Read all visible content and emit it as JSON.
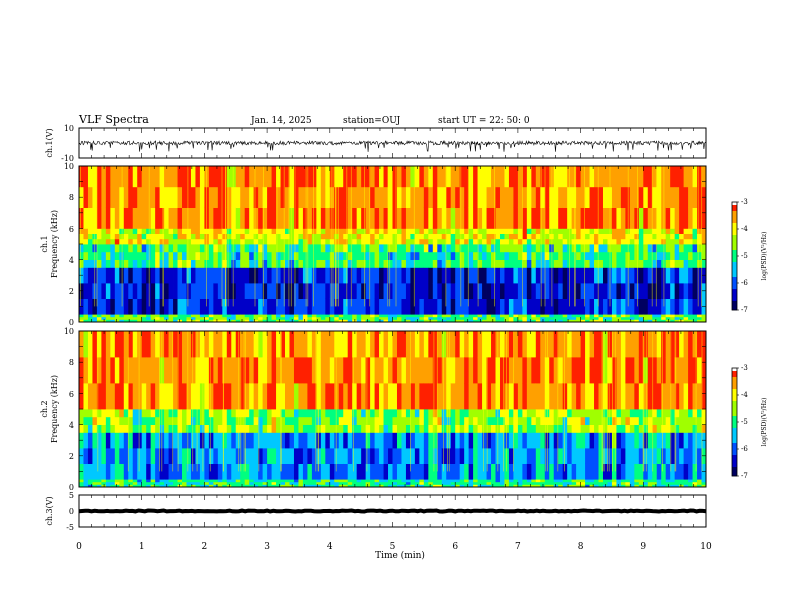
{
  "header": {
    "title": "VLF Spectra",
    "date": "Jan. 14, 2025",
    "station": "station=OUJ",
    "start_ut": "start UT =  22: 50: 0"
  },
  "colors": {
    "scale": [
      "#000060",
      "#0000c8",
      "#0050ff",
      "#00c8ff",
      "#00ff80",
      "#a0ff00",
      "#ffff00",
      "#ffa000",
      "#ff2000",
      "#ffffff"
    ]
  },
  "colorbar": {
    "label": "log(PSD)(V²/Hz)",
    "ticks": [
      "-3",
      "-4",
      "-5",
      "-6",
      "-7"
    ],
    "range": [
      -7,
      -3
    ]
  },
  "chart_data": [
    {
      "type": "line",
      "name": "ch1_waveform",
      "ylabel": "ch.1(V)",
      "ylim": [
        -10,
        10
      ],
      "ytick_labels": [
        "10",
        "-10"
      ],
      "xlim": [
        0,
        10
      ],
      "baseline": 0,
      "amplitude": 2.5,
      "spike_min": -6
    },
    {
      "type": "heatmap",
      "name": "ch1_spectrogram",
      "ylabel_top": "ch.1",
      "ylabel": "Frequency (kHz)",
      "ylim": [
        0,
        10
      ],
      "ytick_labels": [
        "0",
        "2",
        "4",
        "6",
        "8",
        "10"
      ],
      "xlim": [
        0,
        10
      ],
      "bands": [
        {
          "from": 0,
          "to": 0.5,
          "level": 0.55
        },
        {
          "from": 0.5,
          "to": 3.5,
          "level": 0.15
        },
        {
          "from": 3.5,
          "to": 5,
          "level": 0.5
        },
        {
          "from": 5,
          "to": 6,
          "level": 0.72
        },
        {
          "from": 6,
          "to": 10,
          "level": 0.88
        }
      ]
    },
    {
      "type": "heatmap",
      "name": "ch2_spectrogram",
      "ylabel_top": "ch.2",
      "ylabel": "Frequency (kHz)",
      "ylim": [
        0,
        10
      ],
      "ytick_labels": [
        "0",
        "2",
        "4",
        "6",
        "8",
        "10"
      ],
      "xlim": [
        0,
        10
      ],
      "bands": [
        {
          "from": 0,
          "to": 0.5,
          "level": 0.5
        },
        {
          "from": 0.5,
          "to": 3.5,
          "level": 0.32
        },
        {
          "from": 3.5,
          "to": 5,
          "level": 0.62
        },
        {
          "from": 5,
          "to": 10,
          "level": 0.9
        }
      ]
    },
    {
      "type": "line",
      "name": "ch3_waveform",
      "ylabel": "ch.3(V)",
      "ylim": [
        -5,
        5
      ],
      "ytick_labels": [
        "5",
        "0",
        "-5"
      ],
      "xlim": [
        0,
        10
      ],
      "baseline": 0,
      "amplitude": 0.3,
      "xlabel": "Time (min)",
      "xtick_labels": [
        "0",
        "1",
        "2",
        "3",
        "4",
        "5",
        "6",
        "7",
        "8",
        "9",
        "10"
      ]
    }
  ]
}
